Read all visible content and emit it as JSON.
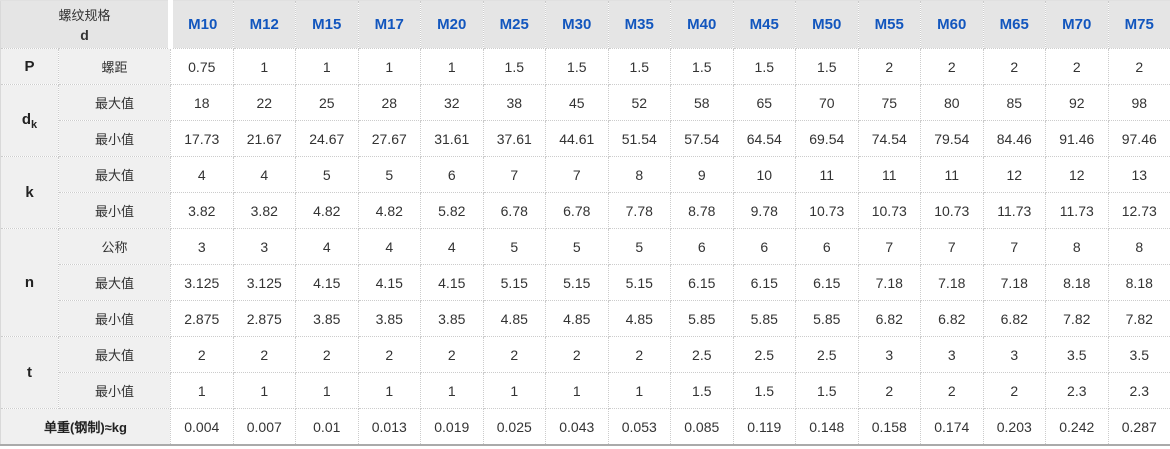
{
  "header": {
    "spec_line1": "螺纹规格",
    "spec_line2": "d",
    "sizes": [
      "M10",
      "M12",
      "M15",
      "M17",
      "M20",
      "M25",
      "M30",
      "M35",
      "M40",
      "M45",
      "M50",
      "M55",
      "M60",
      "M65",
      "M70",
      "M75"
    ]
  },
  "groups": [
    {
      "param": "P",
      "param_sub": "",
      "rows": [
        {
          "label": "螺距",
          "values": [
            "0.75",
            "1",
            "1",
            "1",
            "1",
            "1.5",
            "1.5",
            "1.5",
            "1.5",
            "1.5",
            "1.5",
            "2",
            "2",
            "2",
            "2",
            "2"
          ]
        }
      ]
    },
    {
      "param": "d",
      "param_sub": "k",
      "rows": [
        {
          "label": "最大值",
          "values": [
            "18",
            "22",
            "25",
            "28",
            "32",
            "38",
            "45",
            "52",
            "58",
            "65",
            "70",
            "75",
            "80",
            "85",
            "92",
            "98"
          ]
        },
        {
          "label": "最小值",
          "values": [
            "17.73",
            "21.67",
            "24.67",
            "27.67",
            "31.61",
            "37.61",
            "44.61",
            "51.54",
            "57.54",
            "64.54",
            "69.54",
            "74.54",
            "79.54",
            "84.46",
            "91.46",
            "97.46"
          ]
        }
      ]
    },
    {
      "param": "k",
      "param_sub": "",
      "rows": [
        {
          "label": "最大值",
          "values": [
            "4",
            "4",
            "5",
            "5",
            "6",
            "7",
            "7",
            "8",
            "9",
            "10",
            "11",
            "11",
            "11",
            "12",
            "12",
            "13"
          ]
        },
        {
          "label": "最小值",
          "values": [
            "3.82",
            "3.82",
            "4.82",
            "4.82",
            "5.82",
            "6.78",
            "6.78",
            "7.78",
            "8.78",
            "9.78",
            "10.73",
            "10.73",
            "10.73",
            "11.73",
            "11.73",
            "12.73"
          ]
        }
      ]
    },
    {
      "param": "n",
      "param_sub": "",
      "rows": [
        {
          "label": "公称",
          "values": [
            "3",
            "3",
            "4",
            "4",
            "4",
            "5",
            "5",
            "5",
            "6",
            "6",
            "6",
            "7",
            "7",
            "7",
            "8",
            "8"
          ]
        },
        {
          "label": "最大值",
          "values": [
            "3.125",
            "3.125",
            "4.15",
            "4.15",
            "4.15",
            "5.15",
            "5.15",
            "5.15",
            "6.15",
            "6.15",
            "6.15",
            "7.18",
            "7.18",
            "7.18",
            "8.18",
            "8.18"
          ]
        },
        {
          "label": "最小值",
          "values": [
            "2.875",
            "2.875",
            "3.85",
            "3.85",
            "3.85",
            "4.85",
            "4.85",
            "4.85",
            "5.85",
            "5.85",
            "5.85",
            "6.82",
            "6.82",
            "6.82",
            "7.82",
            "7.82"
          ]
        }
      ]
    },
    {
      "param": "t",
      "param_sub": "",
      "rows": [
        {
          "label": "最大值",
          "values": [
            "2",
            "2",
            "2",
            "2",
            "2",
            "2",
            "2",
            "2",
            "2.5",
            "2.5",
            "2.5",
            "3",
            "3",
            "3",
            "3.5",
            "3.5"
          ]
        },
        {
          "label": "最小值",
          "values": [
            "1",
            "1",
            "1",
            "1",
            "1",
            "1",
            "1",
            "1",
            "1.5",
            "1.5",
            "1.5",
            "2",
            "2",
            "2",
            "2.3",
            "2.3"
          ]
        }
      ]
    }
  ],
  "footer": {
    "label": "单重(钢制)≈kg",
    "values": [
      "0.004",
      "0.007",
      "0.01",
      "0.013",
      "0.019",
      "0.025",
      "0.043",
      "0.053",
      "0.085",
      "0.119",
      "0.148",
      "0.158",
      "0.174",
      "0.203",
      "0.242",
      "0.287"
    ]
  },
  "colors": {
    "header_bg": "#e5e5e5",
    "label_bg": "#f0f0f0",
    "size_text_blue": "#1256be",
    "body_text": "#333333",
    "dotted_border": "#cccccc"
  }
}
